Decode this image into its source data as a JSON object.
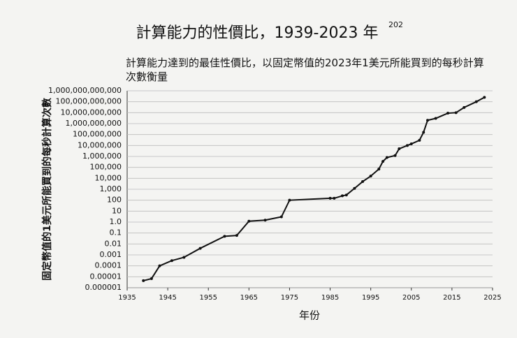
{
  "chart_data": {
    "type": "line",
    "title": "計算能力的性價比，1939-2023 年",
    "title_note": "202",
    "subtitle": "計算能力達到的最佳性價比，以固定幣值的2023年1美元所能買到的每秒計算次數衡量",
    "x_label": "年份",
    "y_label": "固定幣值的1美元所能買到的每秒計算次數",
    "yscale": "log",
    "grid": true,
    "x": [
      1939,
      1941,
      1943,
      1946,
      1949,
      1953,
      1959,
      1962,
      1965,
      1969,
      1973,
      1975,
      1985,
      1986,
      1988,
      1989,
      1991,
      1993,
      1995,
      1997,
      1998,
      1999,
      2001,
      2002,
      2004,
      2005,
      2007,
      2008,
      2009,
      2011,
      2014,
      2016,
      2018,
      2021,
      2023
    ],
    "series": [
      {
        "color": "#111111",
        "values": [
          4.4e-06,
          6.8e-06,
          0.0001,
          0.0003,
          0.0006,
          0.004,
          0.05,
          0.06,
          1.2,
          1.5,
          3,
          100,
          150,
          150,
          250,
          300,
          1200,
          5000,
          16000,
          70000,
          350000,
          800000,
          1200000,
          5000000,
          10000000,
          14000000,
          30000000,
          160000000,
          2000000000,
          3000000000,
          9000000000,
          10000000000,
          30000000000,
          100000000000,
          250000000000
        ]
      }
    ],
    "xlim": [
      1935,
      2025
    ],
    "xticks": [
      1935,
      1945,
      1955,
      1965,
      1975,
      1985,
      1995,
      2005,
      2015,
      2025
    ],
    "ylim": [
      1e-06,
      1000000000000
    ],
    "yticks": [
      1e-06,
      1e-05,
      0.0001,
      0.001,
      0.01,
      0.1,
      {
        "value": 1,
        "label": "1.0"
      },
      10,
      100,
      {
        "value": 1000,
        "label": "1,000"
      },
      {
        "value": 10000,
        "label": "10,000"
      },
      {
        "value": 100000,
        "label": "100,000"
      },
      {
        "value": 1000000,
        "label": "1,000,000"
      },
      {
        "value": 10000000,
        "label": "10,000,000"
      },
      {
        "value": 100000000,
        "label": "100,000,000"
      },
      {
        "value": 1000000000,
        "label": "1,000,000,000"
      },
      {
        "value": 10000000000,
        "label": "10,000,000,000"
      },
      {
        "value": 100000000000,
        "label": "100,000,000,000"
      },
      {
        "value": 1000000000000,
        "label": "1,000,000,000,000"
      }
    ]
  }
}
